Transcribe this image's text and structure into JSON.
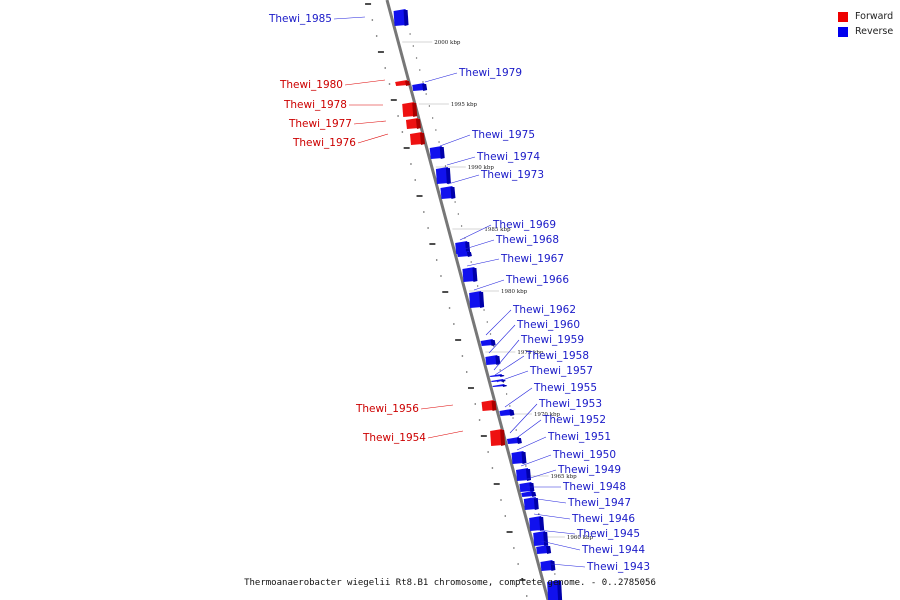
{
  "legend": {
    "forward": {
      "label": "Forward",
      "color": "#ee0000"
    },
    "reverse": {
      "label": "Reverse",
      "color": "#0000ee"
    }
  },
  "caption": "Thermoanaerobacter wiegelii Rt8.B1 chromosome, complete genome. - 0..2785056",
  "kbp_labels": [
    "2000 kbp",
    "1995 kbp",
    "1990 kbp",
    "1985 kbp",
    "1980 kbp",
    "1975 kbp",
    "1970 kbp",
    "1965 kbp",
    "1960 kbp"
  ],
  "forward_genes": [
    "Thewi_1980",
    "Thewi_1978",
    "Thewi_1977",
    "Thewi_1976",
    "Thewi_1956",
    "Thewi_1954"
  ],
  "reverse_genes": [
    "Thewi_1985",
    "Thewi_1979",
    "Thewi_1975",
    "Thewi_1974",
    "Thewi_1973",
    "Thewi_1969",
    "Thewi_1968",
    "Thewi_1967",
    "Thewi_1966",
    "Thewi_1962",
    "Thewi_1960",
    "Thewi_1959",
    "Thewi_1958",
    "Thewi_1957",
    "Thewi_1955",
    "Thewi_1953",
    "Thewi_1952",
    "Thewi_1951",
    "Thewi_1950",
    "Thewi_1949",
    "Thewi_1948",
    "Thewi_1947",
    "Thewi_1946",
    "Thewi_1945",
    "Thewi_1944",
    "Thewi_1943"
  ]
}
